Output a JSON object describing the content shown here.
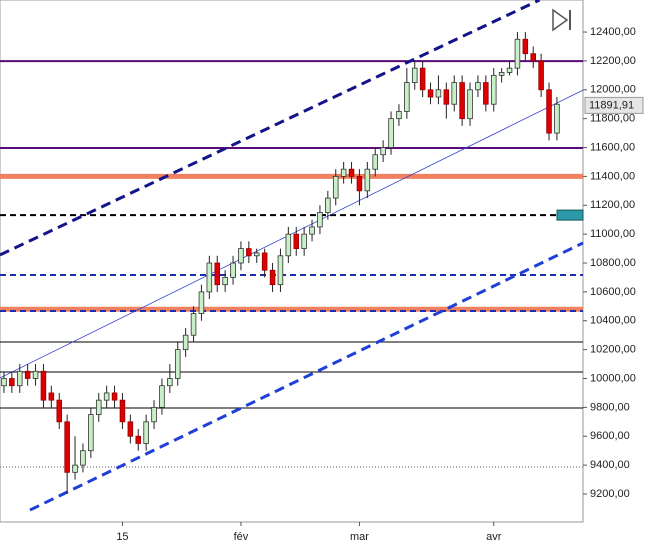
{
  "chart_data": {
    "type": "candlestick",
    "categories": [
      null,
      null,
      null,
      null,
      null,
      null,
      null,
      null,
      null,
      null,
      null,
      null,
      null,
      null,
      null,
      "15",
      null,
      null,
      null,
      null,
      null,
      null,
      null,
      null,
      null,
      null,
      null,
      null,
      null,
      null,
      "fév",
      null,
      null,
      null,
      null,
      null,
      null,
      null,
      null,
      null,
      null,
      null,
      null,
      null,
      null,
      "mar",
      null,
      null,
      null,
      null,
      null,
      null,
      null,
      null,
      null,
      null,
      null,
      null,
      null,
      null,
      null,
      null,
      "avr",
      null,
      null,
      null,
      null,
      null,
      null,
      null,
      null
    ],
    "open": [
      9950,
      10000,
      9950,
      10050,
      10000,
      10050,
      9900,
      9850,
      9700,
      9350,
      9400,
      9500,
      9750,
      9850,
      9900,
      9850,
      9700,
      9600,
      9550,
      9700,
      9800,
      9950,
      10000,
      10200,
      10300,
      10450,
      10600,
      10800,
      10650,
      10700,
      10800,
      10900,
      10850,
      10870,
      10750,
      10650,
      10850,
      11000,
      10900,
      11000,
      11050,
      11150,
      11250,
      11400,
      11450,
      11400,
      11300,
      11450,
      11550,
      11600,
      11800,
      11850,
      12050,
      12150,
      12000,
      11950,
      12000,
      11900,
      12050,
      11800,
      12000,
      12050,
      11900,
      12100,
      12120,
      12150,
      12350,
      12250,
      12200,
      12000,
      11700
    ],
    "high": [
      10050,
      10050,
      10100,
      10100,
      10100,
      10100,
      9950,
      9900,
      9750,
      9600,
      9550,
      9800,
      9900,
      9950,
      9950,
      9900,
      9750,
      9650,
      9750,
      9850,
      10000,
      10100,
      10250,
      10350,
      10500,
      10650,
      10850,
      10850,
      10750,
      10850,
      10950,
      10950,
      10900,
      10900,
      10800,
      10900,
      11050,
      11050,
      11050,
      11100,
      11200,
      11300,
      11450,
      11500,
      11500,
      11450,
      11500,
      11600,
      11650,
      11850,
      11900,
      12150,
      12200,
      12200,
      12050,
      12100,
      12050,
      12100,
      12100,
      12050,
      12100,
      12100,
      12150,
      12150,
      12200,
      12400,
      12400,
      12300,
      12250,
      12050,
      11950
    ],
    "low": [
      9900,
      9900,
      9900,
      9950,
      9950,
      9800,
      9800,
      9650,
      9200,
      9300,
      9350,
      9450,
      9700,
      9800,
      9800,
      9650,
      9550,
      9500,
      9500,
      9650,
      9750,
      9900,
      9950,
      10150,
      10250,
      10400,
      10550,
      10600,
      10600,
      10650,
      10750,
      10800,
      10800,
      10700,
      10600,
      10600,
      10800,
      10850,
      10850,
      10950,
      11000,
      11100,
      11200,
      11350,
      11350,
      11200,
      11250,
      11400,
      11500,
      11550,
      11750,
      11800,
      12000,
      11950,
      11900,
      11900,
      11800,
      11850,
      11750,
      11750,
      11950,
      11850,
      11850,
      12050,
      12100,
      12100,
      12200,
      12150,
      11950,
      11650,
      11650
    ],
    "close": [
      10000,
      9950,
      10050,
      10000,
      10050,
      9850,
      9850,
      9700,
      9350,
      9400,
      9500,
      9750,
      9850,
      9900,
      9850,
      9700,
      9600,
      9550,
      9700,
      9800,
      9950,
      10000,
      10200,
      10300,
      10450,
      10600,
      10800,
      10650,
      10700,
      10800,
      10900,
      10850,
      10870,
      10750,
      10650,
      10850,
      11000,
      10900,
      11000,
      11050,
      11150,
      11250,
      11400,
      11450,
      11400,
      11300,
      11450,
      11550,
      11600,
      11800,
      11850,
      12050,
      12150,
      12000,
      11950,
      12000,
      11900,
      12050,
      11800,
      12000,
      12050,
      11900,
      12100,
      12120,
      12150,
      12350,
      12250,
      12200,
      12000,
      11700,
      11900
    ],
    "up_color": "#c8f0c8",
    "down_color": "#dd0000",
    "xlim": [
      -0.5,
      73.3
    ],
    "ylim": [
      9006,
      12622
    ],
    "yticks": [
      {
        "value": 9200,
        "label": "9200,00"
      },
      {
        "value": 9400,
        "label": "9400,00"
      },
      {
        "value": 9600,
        "label": "9600,00"
      },
      {
        "value": 9800,
        "label": "9800,00"
      },
      {
        "value": 10000,
        "label": "10000,00"
      },
      {
        "value": 10200,
        "label": "10200,00"
      },
      {
        "value": 10400,
        "label": "10400,00"
      },
      {
        "value": 10600,
        "label": "10600,00"
      },
      {
        "value": 10800,
        "label": "10800,00"
      },
      {
        "value": 11000,
        "label": "11000,00"
      },
      {
        "value": 11200,
        "label": "11200,00"
      },
      {
        "value": 11400,
        "label": "11400,00"
      },
      {
        "value": 11600,
        "label": "11600,00"
      },
      {
        "value": 11800,
        "label": "11800,00"
      },
      {
        "value": 12000,
        "label": "12000,00"
      },
      {
        "value": 12200,
        "label": "12200,00"
      },
      {
        "value": 12400,
        "label": "12400,00"
      }
    ],
    "last_price": {
      "value": 11891.91,
      "label": "11891,91"
    },
    "hlines": [
      {
        "value": 12199,
        "color": "#5a0a7a",
        "width": 2,
        "dash": "none"
      },
      {
        "value": 11597,
        "color": "#5a0a7a",
        "width": 2,
        "dash": "none"
      },
      {
        "value": 11400,
        "color": "#f08060",
        "width": 5,
        "dash": "none"
      },
      {
        "value": 10480,
        "color": "#f08060",
        "width": 5,
        "dash": "none"
      },
      {
        "value": 11132,
        "color": "#000000",
        "width": 2,
        "dash": "6 4"
      },
      {
        "value": 10717,
        "color": "#1a2fb0",
        "width": 2,
        "dash": "6 4"
      },
      {
        "value": 10468,
        "color": "#1a2fb0",
        "width": 2,
        "dash": "6 4"
      },
      {
        "value": 10253,
        "color": "#000000",
        "width": 1,
        "dash": "none"
      },
      {
        "value": 10045,
        "color": "#000000",
        "width": 1,
        "dash": "none"
      },
      {
        "value": 9796,
        "color": "#000000",
        "width": 1,
        "dash": "none"
      },
      {
        "value": 9387,
        "color": "#555555",
        "width": 1,
        "dash": "1 2"
      }
    ],
    "alert_level": {
      "value": 11132,
      "color": "#2a9aa8"
    },
    "trendlines": [
      {
        "x": [
          -0.5,
          67.8
        ],
        "values": [
          10856,
          12622
        ],
        "color": "#14148a",
        "width": 3,
        "dash": "10 6"
      },
      {
        "x": [
          3.3,
          73.3
        ],
        "values": [
          9089,
          10939
        ],
        "color": "#1f3fd8",
        "width": 3,
        "dash": "10 6"
      },
      {
        "x": [
          -0.5,
          73.3
        ],
        "values": [
          10004,
          11998
        ],
        "color": "#3344cc",
        "width": 0.8,
        "dash": "none"
      }
    ]
  }
}
